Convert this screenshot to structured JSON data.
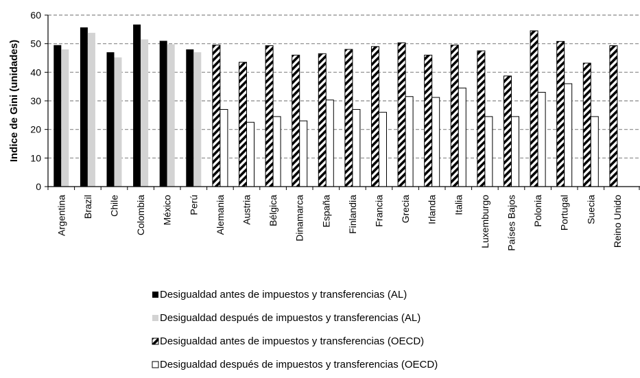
{
  "chart_data": {
    "type": "bar",
    "title": "",
    "ylabel": "Indice de Gini (unidades)",
    "xlabel": "",
    "ylim": [
      0,
      60
    ],
    "yticks": [
      0,
      10,
      20,
      30,
      40,
      50,
      60
    ],
    "grid": "horizontal dashed",
    "legend_position": "bottom",
    "categories": [
      "Argentina",
      "Brazil",
      "Chile",
      "Colombia",
      "México",
      "Perú",
      "Alemania",
      "Austria",
      "Bélgica",
      "Dinamarca",
      "España",
      "Finlandia",
      "Francia",
      "Grecia",
      "Irlanda",
      "Italia",
      "Luxemburgo",
      "Países Bajos",
      "Polonia",
      "Portugal",
      "Suecia",
      "Reino Unido"
    ],
    "series": [
      {
        "name": "Desigualdad antes de impuestos y transferencias (AL)",
        "color": "#000000",
        "style": "solid",
        "values": [
          49.5,
          55.7,
          47,
          56.7,
          51,
          48,
          null,
          null,
          null,
          null,
          null,
          null,
          null,
          null,
          null,
          null,
          null,
          null,
          null,
          null,
          null,
          null
        ]
      },
      {
        "name": "Desigualdad después de impuestos y transferencias (AL)",
        "color": "#d3d3d3",
        "style": "solid",
        "values": [
          48,
          53.8,
          45.2,
          51.5,
          49.8,
          47,
          null,
          null,
          null,
          null,
          null,
          null,
          null,
          null,
          null,
          null,
          null,
          null,
          null,
          null,
          null,
          null
        ]
      },
      {
        "name": "Desigualdad antes de impuestos y transferencias (OECD)",
        "color": "#000000",
        "style": "hatched",
        "values": [
          null,
          null,
          null,
          null,
          null,
          null,
          49.5,
          43.5,
          49.3,
          46,
          46.5,
          48,
          49,
          50.3,
          46,
          49.5,
          47.5,
          38.7,
          54.5,
          50.8,
          43.2,
          49.3
        ]
      },
      {
        "name": "Desigualdad después de impuestos y transferencias (OECD)",
        "color": "#ffffff",
        "style": "outline",
        "values": [
          null,
          null,
          null,
          null,
          null,
          null,
          27,
          22.5,
          24.5,
          23,
          30.3,
          27,
          26,
          31.5,
          31.2,
          34.5,
          24.5,
          24.5,
          33,
          36,
          24.5,
          null
        ]
      }
    ]
  }
}
